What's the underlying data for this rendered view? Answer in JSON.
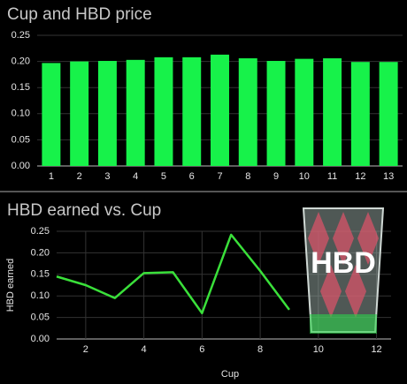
{
  "chart_data": [
    {
      "type": "bar",
      "title": "Cup and HBD price",
      "categories": [
        "1",
        "2",
        "3",
        "4",
        "5",
        "6",
        "7",
        "8",
        "9",
        "10",
        "11",
        "12",
        "13"
      ],
      "values": [
        0.197,
        0.2,
        0.201,
        0.203,
        0.208,
        0.208,
        0.213,
        0.206,
        0.201,
        0.205,
        0.206,
        0.199,
        0.199
      ],
      "color": "#17f24a",
      "ylim": [
        0,
        0.25
      ],
      "yticks": [
        {
          "value": 0,
          "label": "0.00"
        },
        0.05,
        {
          "value": 0.1,
          "label": "0.10"
        },
        0.15,
        {
          "value": 0.2,
          "label": "0.20"
        },
        0.25
      ],
      "grid": true
    },
    {
      "type": "line",
      "title": "HBD earned vs. Cup",
      "x": [
        1,
        2,
        3,
        4,
        5,
        6,
        7,
        8,
        9
      ],
      "values": [
        0.145,
        0.125,
        0.095,
        0.153,
        0.155,
        0.06,
        0.242,
        0.158,
        0.068
      ],
      "color": "#3ae03a",
      "xlim": [
        1,
        12.5
      ],
      "xticks": [
        2,
        4,
        6,
        8,
        10,
        12
      ],
      "ylim": [
        0,
        0.25
      ],
      "yticks": [
        {
          "value": 0,
          "label": "0.00"
        },
        0.05,
        {
          "value": 0.1,
          "label": "0.10"
        },
        0.15,
        {
          "value": 0.2,
          "label": "0.20"
        },
        0.25
      ],
      "x_label": "Cup",
      "y_label": "HBD earned",
      "grid": true
    }
  ],
  "decoration": {
    "label": "HBD"
  }
}
